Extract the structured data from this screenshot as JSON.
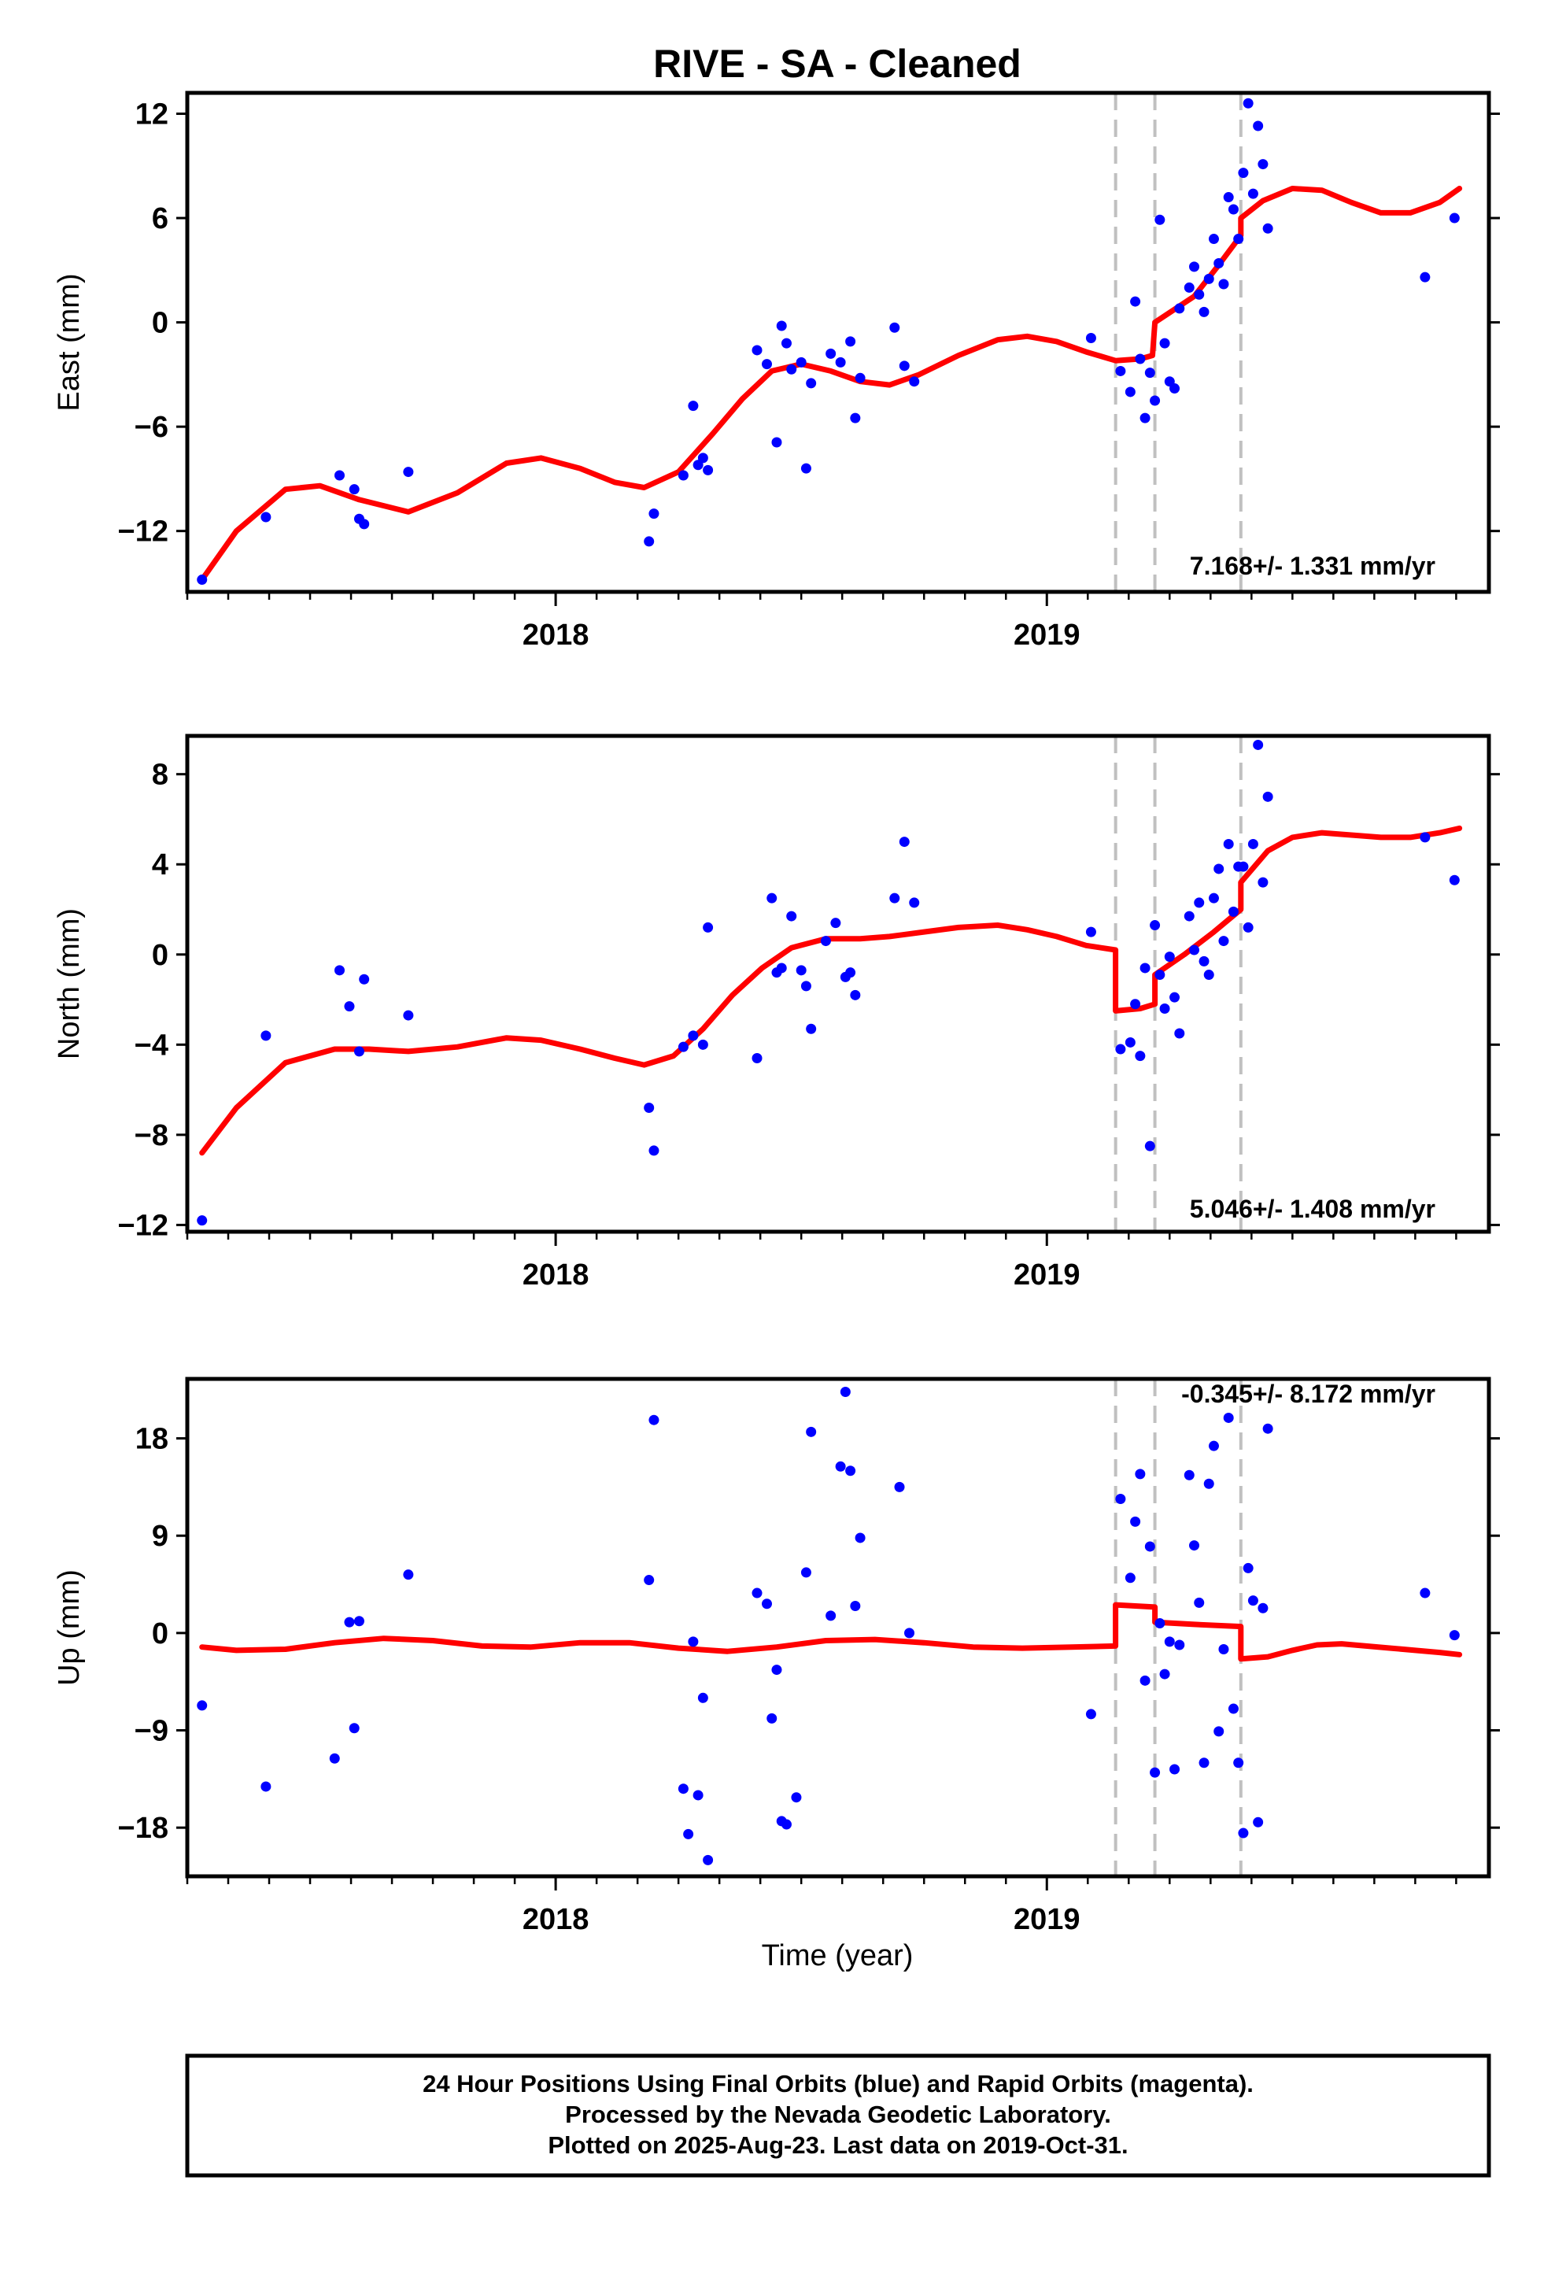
{
  "title": "RIVE  - SA - Cleaned",
  "footer": {
    "line1": "24 Hour Positions Using Final Orbits (blue) and Rapid Orbits (magenta).",
    "line2": "Processed by the Nevada Geodetic Laboratory.",
    "line3": "Plotted on 2025-Aug-23. Last data on 2019-Oct-31."
  },
  "colors": {
    "points": "#0000ff",
    "model": "#ff0000",
    "breaks": "#c0c0c0",
    "frame": "#000000"
  },
  "chart_data": [
    {
      "type": "scatter",
      "name": "east",
      "ylabel": "East (mm)",
      "rate_label": "7.168+/- 1.331 mm/yr",
      "xlim": [
        2017.25,
        2019.9
      ],
      "ylim": [
        -15.5,
        13.2
      ],
      "x_ticks": [
        2018,
        2019
      ],
      "y_ticks": [
        -12,
        -6,
        0,
        6,
        12
      ],
      "y_tick_labels": [
        "−12",
        "−6",
        "0",
        "6",
        "12"
      ],
      "grid": false,
      "breaks_x": [
        2019.14,
        2019.22,
        2019.395
      ],
      "observations": {
        "x": [
          2017.28,
          2017.41,
          2017.56,
          2017.59,
          2017.6,
          2017.61,
          2017.7,
          2018.19,
          2018.2,
          2018.26,
          2018.28,
          2018.29,
          2018.3,
          2018.31,
          2018.41,
          2018.43,
          2018.45,
          2018.46,
          2018.47,
          2018.48,
          2018.5,
          2018.51,
          2018.52,
          2018.56,
          2018.58,
          2018.6,
          2018.61,
          2018.62,
          2018.69,
          2018.71,
          2018.73,
          2019.09,
          2019.15,
          2019.17,
          2019.18,
          2019.19,
          2019.2,
          2019.21,
          2019.22,
          2019.23,
          2019.24,
          2019.25,
          2019.26,
          2019.27,
          2019.29,
          2019.3,
          2019.31,
          2019.32,
          2019.33,
          2019.34,
          2019.35,
          2019.36,
          2019.37,
          2019.38,
          2019.39,
          2019.4,
          2019.41,
          2019.42,
          2019.43,
          2019.44,
          2019.45,
          2019.77,
          2019.83
        ],
        "y": [
          -14.8,
          -11.2,
          -8.8,
          -9.6,
          -11.3,
          -11.6,
          -8.6,
          -12.6,
          -11.0,
          -8.8,
          -4.8,
          -8.2,
          -7.8,
          -8.5,
          -1.6,
          -2.4,
          -6.9,
          -0.2,
          -1.2,
          -2.7,
          -2.3,
          -8.4,
          -3.5,
          -1.8,
          -2.3,
          -1.1,
          -5.5,
          -3.2,
          -0.3,
          -2.5,
          -3.4,
          -0.9,
          -2.8,
          -4.0,
          1.2,
          -2.1,
          -5.5,
          -2.9,
          -4.5,
          5.9,
          -1.2,
          -3.4,
          -3.8,
          0.8,
          2.0,
          3.2,
          1.6,
          0.6,
          2.5,
          4.8,
          3.4,
          2.2,
          7.2,
          6.5,
          4.8,
          8.6,
          12.6,
          7.4,
          11.3,
          9.1,
          5.4,
          2.6,
          6.0
        ]
      },
      "model": {
        "x": [
          2017.28,
          2017.35,
          2017.45,
          2017.52,
          2017.6,
          2017.7,
          2017.8,
          2017.9,
          2017.97,
          2018.05,
          2018.12,
          2018.18,
          2018.25,
          2018.32,
          2018.38,
          2018.44,
          2018.5,
          2018.56,
          2018.62,
          2018.68,
          2018.74,
          2018.82,
          2018.9,
          2018.96,
          2019.02,
          2019.08,
          2019.14,
          2019.19,
          2019.215,
          2019.22,
          2019.3,
          2019.35,
          2019.395,
          2019.395,
          2019.44,
          2019.5,
          2019.56,
          2019.62,
          2019.68,
          2019.74,
          2019.8,
          2019.84
        ],
        "y": [
          -14.8,
          -12.0,
          -9.6,
          -9.4,
          -10.2,
          -10.9,
          -9.8,
          -8.1,
          -7.8,
          -8.4,
          -9.2,
          -9.5,
          -8.6,
          -6.4,
          -4.4,
          -2.8,
          -2.4,
          -2.8,
          -3.4,
          -3.6,
          -3.0,
          -1.9,
          -1.0,
          -0.8,
          -1.1,
          -1.7,
          -2.2,
          -2.1,
          -1.9,
          0.0,
          1.5,
          3.3,
          5.0,
          6.0,
          7.0,
          7.7,
          7.6,
          6.9,
          6.3,
          6.3,
          6.9,
          7.7
        ]
      }
    },
    {
      "type": "scatter",
      "name": "north",
      "ylabel": "North (mm)",
      "rate_label": "5.046+/- 1.408 mm/yr",
      "xlim": [
        2017.25,
        2019.9
      ],
      "ylim": [
        -12.3,
        9.7
      ],
      "x_ticks": [
        2018,
        2019
      ],
      "y_ticks": [
        -12,
        -8,
        -4,
        0,
        4,
        8
      ],
      "y_tick_labels": [
        "−12",
        "−8",
        "−4",
        "0",
        "4",
        "8"
      ],
      "grid": false,
      "breaks_x": [
        2019.14,
        2019.22,
        2019.395
      ],
      "observations": {
        "x": [
          2017.28,
          2017.41,
          2017.56,
          2017.58,
          2017.6,
          2017.61,
          2017.7,
          2018.19,
          2018.2,
          2018.26,
          2018.28,
          2018.3,
          2018.31,
          2018.41,
          2018.44,
          2018.45,
          2018.46,
          2018.48,
          2018.5,
          2018.51,
          2018.52,
          2018.55,
          2018.57,
          2018.59,
          2018.6,
          2018.61,
          2018.69,
          2018.71,
          2018.73,
          2019.09,
          2019.15,
          2019.17,
          2019.18,
          2019.19,
          2019.2,
          2019.21,
          2019.22,
          2019.23,
          2019.24,
          2019.25,
          2019.26,
          2019.27,
          2019.29,
          2019.3,
          2019.31,
          2019.32,
          2019.33,
          2019.34,
          2019.35,
          2019.36,
          2019.37,
          2019.38,
          2019.39,
          2019.4,
          2019.41,
          2019.42,
          2019.43,
          2019.44,
          2019.45,
          2019.77,
          2019.83
        ],
        "y": [
          -11.8,
          -3.6,
          -0.7,
          -2.3,
          -4.3,
          -1.1,
          -2.7,
          -6.8,
          -8.7,
          -4.1,
          -3.6,
          -4.0,
          1.2,
          -4.6,
          2.5,
          -0.8,
          -0.6,
          1.7,
          -0.7,
          -1.4,
          -3.3,
          0.6,
          1.4,
          -1.0,
          -0.8,
          -1.8,
          2.5,
          5.0,
          2.3,
          1.0,
          -4.2,
          -3.9,
          -2.2,
          -4.5,
          -0.6,
          -8.5,
          1.3,
          -0.9,
          -2.4,
          -0.1,
          -1.9,
          -3.5,
          1.7,
          0.2,
          2.3,
          -0.3,
          -0.9,
          2.5,
          3.8,
          0.6,
          4.9,
          1.9,
          3.9,
          3.9,
          1.2,
          4.9,
          9.3,
          3.2,
          7.0,
          5.2,
          3.3
        ]
      },
      "model": {
        "x": [
          2017.28,
          2017.35,
          2017.45,
          2017.55,
          2017.62,
          2017.7,
          2017.8,
          2017.9,
          2017.97,
          2018.05,
          2018.12,
          2018.18,
          2018.24,
          2018.3,
          2018.36,
          2018.42,
          2018.48,
          2018.55,
          2018.62,
          2018.68,
          2018.75,
          2018.82,
          2018.9,
          2018.96,
          2019.02,
          2019.08,
          2019.14,
          2019.14,
          2019.19,
          2019.22,
          2019.22,
          2019.28,
          2019.34,
          2019.395,
          2019.395,
          2019.45,
          2019.5,
          2019.56,
          2019.62,
          2019.68,
          2019.74,
          2019.8,
          2019.84
        ],
        "y": [
          -8.8,
          -6.8,
          -4.8,
          -4.2,
          -4.2,
          -4.3,
          -4.1,
          -3.7,
          -3.8,
          -4.2,
          -4.6,
          -4.9,
          -4.5,
          -3.3,
          -1.8,
          -0.6,
          0.3,
          0.7,
          0.7,
          0.8,
          1.0,
          1.2,
          1.3,
          1.1,
          0.8,
          0.4,
          0.2,
          -2.5,
          -2.4,
          -2.2,
          -0.9,
          0.0,
          1.0,
          2.0,
          3.2,
          4.6,
          5.2,
          5.4,
          5.3,
          5.2,
          5.2,
          5.4,
          5.6
        ]
      }
    },
    {
      "type": "scatter",
      "name": "up",
      "ylabel": "Up (mm)",
      "rate_label": "-0.345+/- 8.172 mm/yr",
      "xlim": [
        2017.25,
        2019.9
      ],
      "ylim": [
        -22.5,
        23.5
      ],
      "x_ticks": [
        2018,
        2019
      ],
      "y_ticks": [
        -18,
        -9,
        0,
        9,
        18
      ],
      "y_tick_labels": [
        "−18",
        "−9",
        "0",
        "9",
        "18"
      ],
      "grid": false,
      "breaks_x": [
        2019.14,
        2019.22,
        2019.395
      ],
      "observations": {
        "x": [
          2017.28,
          2017.41,
          2017.55,
          2017.58,
          2017.59,
          2017.6,
          2017.7,
          2018.19,
          2018.2,
          2018.26,
          2018.27,
          2018.28,
          2018.29,
          2018.3,
          2018.31,
          2018.41,
          2018.43,
          2018.44,
          2018.45,
          2018.46,
          2018.47,
          2018.49,
          2018.51,
          2018.52,
          2018.56,
          2018.58,
          2018.59,
          2018.6,
          2018.61,
          2018.62,
          2018.7,
          2018.72,
          2019.09,
          2019.15,
          2019.17,
          2019.18,
          2019.19,
          2019.2,
          2019.21,
          2019.22,
          2019.23,
          2019.24,
          2019.25,
          2019.26,
          2019.27,
          2019.29,
          2019.3,
          2019.31,
          2019.32,
          2019.33,
          2019.34,
          2019.35,
          2019.36,
          2019.37,
          2019.38,
          2019.39,
          2019.4,
          2019.41,
          2019.42,
          2019.43,
          2019.44,
          2019.45,
          2019.77,
          2019.83
        ],
        "y": [
          -6.7,
          -14.2,
          -11.6,
          1.0,
          -8.8,
          1.1,
          5.4,
          4.9,
          19.7,
          -14.4,
          -18.6,
          -0.8,
          -15.0,
          -6.0,
          -21.0,
          3.7,
          2.7,
          -7.9,
          -3.4,
          -17.4,
          -17.7,
          -15.2,
          5.6,
          18.6,
          1.6,
          15.4,
          22.3,
          15.0,
          2.5,
          8.8,
          13.5,
          0.0,
          -7.5,
          12.4,
          5.1,
          10.3,
          14.7,
          -4.4,
          8.0,
          -12.9,
          0.9,
          -3.8,
          -0.8,
          -12.6,
          -1.1,
          14.6,
          8.1,
          2.8,
          -12.0,
          13.8,
          17.3,
          -9.1,
          -1.5,
          19.9,
          -7.0,
          -12.0,
          -18.5,
          6.0,
          3.0,
          -17.5,
          2.3,
          18.9,
          3.7,
          -0.2
        ]
      },
      "model": {
        "x": [
          2017.28,
          2017.35,
          2017.45,
          2017.55,
          2017.65,
          2017.75,
          2017.85,
          2017.95,
          2018.05,
          2018.15,
          2018.25,
          2018.35,
          2018.45,
          2018.55,
          2018.65,
          2018.75,
          2018.85,
          2018.95,
          2019.05,
          2019.14,
          2019.14,
          2019.22,
          2019.22,
          2019.3,
          2019.395,
          2019.395,
          2019.45,
          2019.5,
          2019.55,
          2019.6,
          2019.65,
          2019.7,
          2019.75,
          2019.8,
          2019.84
        ],
        "y": [
          -1.3,
          -1.6,
          -1.5,
          -0.9,
          -0.5,
          -0.7,
          -1.2,
          -1.3,
          -0.9,
          -0.9,
          -1.4,
          -1.7,
          -1.3,
          -0.7,
          -0.6,
          -0.9,
          -1.3,
          -1.4,
          -1.3,
          -1.2,
          2.6,
          2.4,
          1.0,
          0.8,
          0.6,
          -2.4,
          -2.2,
          -1.6,
          -1.1,
          -1.0,
          -1.2,
          -1.4,
          -1.6,
          -1.8,
          -2.0
        ]
      }
    }
  ]
}
